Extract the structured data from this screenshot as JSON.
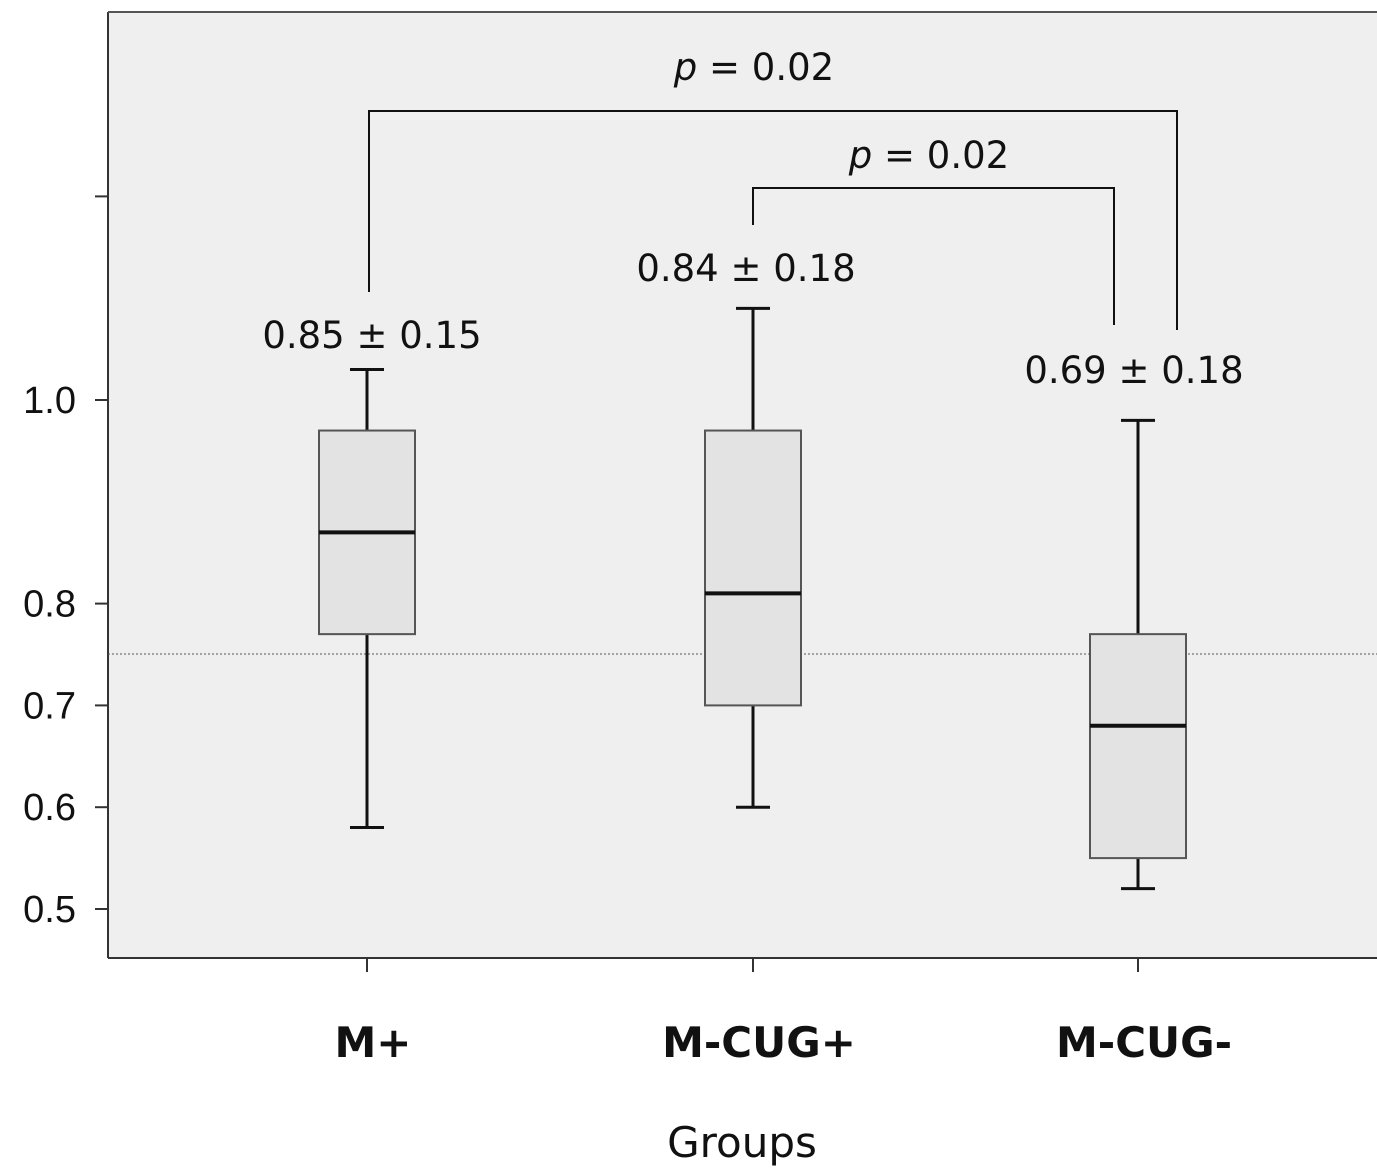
{
  "chart_data": {
    "type": "box",
    "xlabel": "Groups",
    "ylabel": "",
    "ylim": [
      0.44,
      1.55
    ],
    "y_ticks_labeled": [
      0.5,
      0.6,
      0.7,
      0.8,
      1.0
    ],
    "y_ticks_unlabeled": [
      1.2,
      1.4
    ],
    "categories": [
      "M+",
      "M-CUG+",
      "M-CUG-"
    ],
    "boxes": [
      {
        "category": "M+",
        "whisker_low": 0.58,
        "q1": 0.77,
        "median": 0.87,
        "q3": 0.97,
        "whisker_high": 1.03
      },
      {
        "category": "M-CUG+",
        "whisker_low": 0.6,
        "q1": 0.7,
        "median": 0.81,
        "q3": 0.97,
        "whisker_high": 1.09
      },
      {
        "category": "M-CUG-",
        "whisker_low": 0.52,
        "q1": 0.55,
        "median": 0.68,
        "q3": 0.77,
        "whisker_high": 0.98
      }
    ],
    "box_labels": [
      "0.85 ± 0.15",
      "0.84 ± 0.18",
      "0.69 ± 0.18"
    ],
    "reference_line": 0.7,
    "comparisons": [
      {
        "from": "M+",
        "to": "M-CUG-",
        "p_symbol": "p",
        "p_value": " = 0.02"
      },
      {
        "from": "M-CUG+",
        "to": "M-CUG-",
        "p_symbol": "p",
        "p_value": " = 0.02"
      }
    ],
    "grid": false,
    "legend": "none",
    "colors": {
      "plot_background": "#efefef",
      "box_fill": "#e3e3e3",
      "box_stroke": "#555555",
      "line": "#111111"
    }
  }
}
